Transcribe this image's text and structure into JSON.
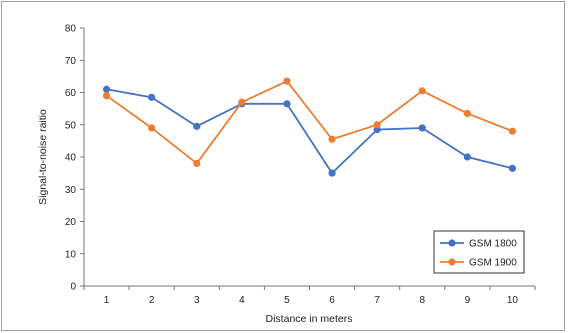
{
  "chart_data": {
    "type": "line",
    "title": "",
    "xlabel": "Distance in meters",
    "ylabel": "Signal-to-noise raitio",
    "categories": [
      "1",
      "2",
      "3",
      "4",
      "5",
      "6",
      "7",
      "8",
      "9",
      "10"
    ],
    "yticks": [
      "0",
      "10",
      "20",
      "30",
      "40",
      "50",
      "60",
      "70",
      "80"
    ],
    "ylim": [
      0,
      80
    ],
    "grid": false,
    "legend_position": "bottom-right",
    "series": [
      {
        "name": "GSM 1800",
        "color": "#4472C4",
        "values": [
          61,
          58.5,
          49.5,
          56.5,
          56.5,
          35,
          48.5,
          49,
          40,
          36.5
        ]
      },
      {
        "name": "GSM 1900",
        "color": "#ED7D31",
        "values": [
          59,
          49,
          38,
          57,
          63.5,
          45.5,
          50,
          60.5,
          53.5,
          48
        ]
      }
    ]
  }
}
